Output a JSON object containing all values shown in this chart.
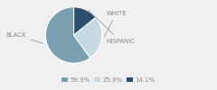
{
  "labels": [
    "BLACK",
    "WHITE",
    "HISPANIC"
  ],
  "values": [
    59.9,
    25.9,
    14.1
  ],
  "colors": [
    "#7a9fb0",
    "#c5d9e3",
    "#2d4f6e"
  ],
  "legend_labels": [
    "59.9%",
    "25.9%",
    "14.1%"
  ],
  "startangle": 90,
  "bg_color": "#f0f0f0",
  "label_color": "#888888",
  "line_color": "#999999",
  "figsize": [
    2.4,
    1.0
  ],
  "dpi": 100,
  "label_fontsize": 5.0,
  "legend_fontsize": 5.0
}
